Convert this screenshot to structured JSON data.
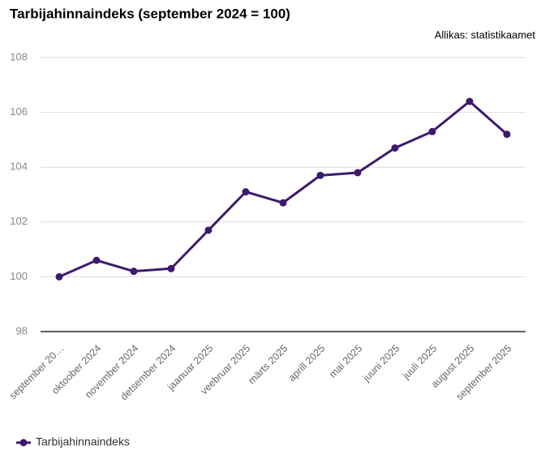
{
  "chart_data": {
    "type": "line",
    "title": "Tarbijahinnaindeks (september 2024 = 100)",
    "source": "Allikas: statistikaamet",
    "categories": [
      "september 20…",
      "oktoober 2024",
      "november 2024",
      "detsember 2024",
      "jaanuar 2025",
      "veebruar 2025",
      "märts 2025",
      "aprill 2025",
      "mai 2025",
      "juuni 2025",
      "juuli 2025",
      "august 2025",
      "september 2025"
    ],
    "series": [
      {
        "name": "Tarbijahinnaindeks",
        "color": "#3d1a6e",
        "values": [
          100.0,
          100.6,
          100.2,
          100.3,
          101.7,
          103.1,
          102.7,
          103.7,
          103.8,
          104.7,
          105.3,
          106.4,
          105.2
        ]
      }
    ],
    "ylim": [
      98,
      108
    ],
    "yticks": [
      98,
      100,
      102,
      104,
      106,
      108
    ],
    "grid": true,
    "legend": "bottom-left"
  }
}
